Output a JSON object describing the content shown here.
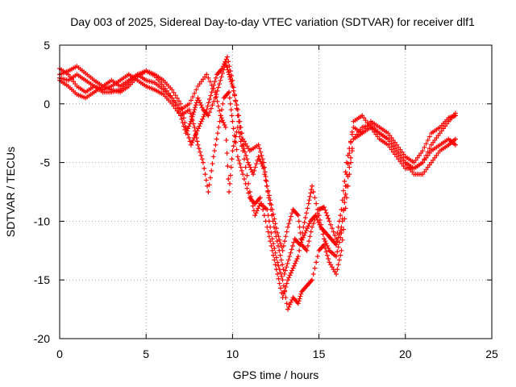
{
  "chart_data": {
    "type": "scatter",
    "title": "Day 003 of 2025, Sidereal Day-to-day VTEC variation (SDTVAR) for receiver dlf1",
    "xlabel": "GPS time / hours",
    "ylabel": "SDTVAR / TECUs",
    "xlim": [
      0,
      25
    ],
    "ylim": [
      -20,
      5
    ],
    "xticks": [
      0,
      5,
      10,
      15,
      20,
      25
    ],
    "yticks": [
      -20,
      -15,
      -10,
      -5,
      0,
      5
    ],
    "grid": true,
    "marker": "+",
    "color": "#ff0000",
    "series": [
      {
        "points": [
          [
            0,
            2.5
          ],
          [
            0.5,
            2.8
          ],
          [
            1,
            3.2
          ],
          [
            1.5,
            2.6
          ],
          [
            2,
            2.0
          ],
          [
            2.5,
            1.5
          ],
          [
            3,
            1.2
          ],
          [
            3.5,
            1.0
          ],
          [
            4,
            1.5
          ],
          [
            4.5,
            2.3
          ],
          [
            5,
            2.8
          ],
          [
            5.5,
            2.4
          ],
          [
            6,
            1.5
          ],
          [
            6.5,
            0.5
          ],
          [
            7,
            -1.0
          ],
          [
            7.3,
            -2.5
          ],
          [
            7.6,
            -1.5
          ],
          [
            7.8,
            -0.5
          ],
          [
            8,
            0.5
          ],
          [
            8.3,
            -0.5
          ],
          [
            8.6,
            -1.0
          ],
          [
            9,
            0.5
          ],
          [
            9.3,
            2.0
          ],
          [
            9.6,
            3.5
          ],
          [
            9.8,
            2.5
          ],
          [
            10,
            1.5
          ],
          [
            10.3,
            -0.5
          ],
          [
            10.6,
            -3.0
          ],
          [
            11,
            -4.0
          ],
          [
            11.5,
            -3.5
          ],
          [
            11.8,
            -5.0
          ],
          [
            12,
            -7.0
          ],
          [
            12.3,
            -9.0
          ],
          [
            12.6,
            -11.0
          ],
          [
            12.9,
            -12.5
          ],
          [
            13.2,
            -10.5
          ],
          [
            13.5,
            -9.0
          ],
          [
            13.8,
            -9.5
          ],
          [
            14,
            -12.0
          ],
          [
            14.3,
            -12.5
          ],
          [
            14.6,
            -10.5
          ],
          [
            15,
            -9.0
          ],
          [
            15.3,
            -8.8
          ],
          [
            15.6,
            -10.0
          ],
          [
            16,
            -11.5
          ],
          [
            16.3,
            -9.0
          ],
          [
            16.6,
            -5.0
          ],
          [
            17,
            -2.0
          ],
          [
            17.5,
            -2.5
          ],
          [
            18,
            -2.0
          ],
          [
            18.5,
            -2.5
          ],
          [
            19,
            -3.0
          ],
          [
            19.5,
            -4.0
          ],
          [
            20,
            -5.0
          ],
          [
            20.5,
            -5.5
          ],
          [
            21,
            -5.0
          ],
          [
            21.5,
            -3.5
          ],
          [
            22,
            -2.5
          ],
          [
            22.5,
            -1.5
          ],
          [
            22.9,
            -0.8
          ]
        ]
      },
      {
        "points": [
          [
            0,
            2.0
          ],
          [
            0.5,
            1.5
          ],
          [
            1,
            0.8
          ],
          [
            1.5,
            0.5
          ],
          [
            2,
            1.0
          ],
          [
            2.5,
            1.5
          ],
          [
            3,
            2.0
          ],
          [
            3.5,
            1.5
          ],
          [
            4,
            2.0
          ],
          [
            4.5,
            2.5
          ],
          [
            5,
            2.0
          ],
          [
            5.5,
            1.8
          ],
          [
            6,
            1.2
          ],
          [
            6.5,
            0.5
          ],
          [
            7,
            -0.5
          ],
          [
            7.5,
            0
          ],
          [
            8,
            1.5
          ],
          [
            8.5,
            2.5
          ],
          [
            9,
            1.0
          ],
          [
            9.3,
            -1.0
          ],
          [
            9.6,
            -2.0
          ],
          [
            9.8,
            -7.5
          ],
          [
            10,
            -4.0
          ],
          [
            10.3,
            -2.0
          ],
          [
            10.6,
            -4.0
          ],
          [
            11,
            -7.5
          ],
          [
            11.3,
            -9.5
          ],
          [
            11.6,
            -8.5
          ],
          [
            12,
            -9.0
          ],
          [
            12.3,
            -11.5
          ],
          [
            12.6,
            -13.5
          ],
          [
            12.9,
            -15.0
          ],
          [
            13.2,
            -17.5
          ],
          [
            13.5,
            -16.5
          ],
          [
            13.8,
            -17.0
          ],
          [
            14,
            -16.0
          ],
          [
            14.3,
            -15.5
          ],
          [
            14.6,
            -15.0
          ],
          [
            15,
            -12.5
          ],
          [
            15.3,
            -12.0
          ],
          [
            15.6,
            -13.5
          ],
          [
            16,
            -14.5
          ],
          [
            16.3,
            -12.5
          ],
          [
            16.6,
            -8.0
          ],
          [
            17,
            -3.0
          ],
          [
            17.5,
            -2.0
          ],
          [
            18,
            -1.8
          ],
          [
            18.5,
            -2.5
          ],
          [
            19,
            -3.0
          ],
          [
            19.5,
            -4.0
          ],
          [
            20,
            -5.0
          ],
          [
            20.5,
            -6.0
          ],
          [
            21,
            -6.0
          ],
          [
            21.5,
            -5.0
          ],
          [
            22,
            -4.0
          ],
          [
            22.5,
            -3.5
          ],
          [
            22.9,
            -3.0
          ]
        ]
      },
      {
        "points": [
          [
            0,
            3.0
          ],
          [
            0.5,
            2.5
          ],
          [
            1,
            1.5
          ],
          [
            1.5,
            1.0
          ],
          [
            2,
            1.5
          ],
          [
            2.5,
            1.2
          ],
          [
            3,
            1.5
          ],
          [
            3.5,
            2.0
          ],
          [
            4,
            2.5
          ],
          [
            4.5,
            2.0
          ],
          [
            5,
            1.5
          ],
          [
            5.5,
            1.2
          ],
          [
            6,
            0.8
          ],
          [
            6.5,
            0
          ],
          [
            7,
            -1.0
          ],
          [
            7.5,
            -0.5
          ],
          [
            7.8,
            -2.0
          ],
          [
            8,
            -3.5
          ],
          [
            8.3,
            -5.0
          ],
          [
            8.6,
            -7.5
          ],
          [
            8.9,
            -4.5
          ],
          [
            9.2,
            -2.0
          ],
          [
            9.5,
            0.5
          ],
          [
            9.8,
            1.0
          ],
          [
            10,
            -1.5
          ],
          [
            10.3,
            -4.5
          ],
          [
            10.6,
            -6.0
          ],
          [
            11,
            -8.0
          ],
          [
            11.3,
            -8.5
          ],
          [
            11.6,
            -8.0
          ],
          [
            12,
            -10.5
          ],
          [
            12.3,
            -12.5
          ],
          [
            12.6,
            -14.5
          ],
          [
            12.9,
            -16.5
          ],
          [
            13.2,
            -15.0
          ],
          [
            13.5,
            -14.0
          ],
          [
            13.8,
            -13.0
          ],
          [
            14.1,
            -10.5
          ],
          [
            14.4,
            -8.5
          ],
          [
            14.6,
            -7.0
          ],
          [
            15,
            -9.5
          ],
          [
            15.3,
            -11.5
          ],
          [
            15.6,
            -12.5
          ],
          [
            16,
            -13.0
          ],
          [
            16.3,
            -11.0
          ],
          [
            16.6,
            -6.0
          ],
          [
            17,
            -1.5
          ],
          [
            17.5,
            -1.0
          ],
          [
            18,
            -2.0
          ],
          [
            18.5,
            -3.0
          ],
          [
            19,
            -3.5
          ],
          [
            19.5,
            -4.5
          ],
          [
            20,
            -5.5
          ],
          [
            20.5,
            -5.5
          ],
          [
            21,
            -5.0
          ],
          [
            21.5,
            -4.0
          ],
          [
            22,
            -3.5
          ],
          [
            22.5,
            -3.0
          ],
          [
            22.9,
            -3.5
          ]
        ]
      },
      {
        "points": [
          [
            0,
            2.2
          ],
          [
            0.5,
            2.0
          ],
          [
            1,
            2.5
          ],
          [
            1.5,
            2.0
          ],
          [
            2,
            1.5
          ],
          [
            2.5,
            1.0
          ],
          [
            3,
            1.0
          ],
          [
            3.5,
            1.2
          ],
          [
            4,
            1.8
          ],
          [
            4.5,
            2.5
          ],
          [
            5,
            2.8
          ],
          [
            5.5,
            2.5
          ],
          [
            6,
            2.0
          ],
          [
            6.5,
            1.2
          ],
          [
            7,
            0
          ],
          [
            7.3,
            -2.0
          ],
          [
            7.6,
            -3.5
          ],
          [
            7.9,
            -2.5
          ],
          [
            8.2,
            -1.5
          ],
          [
            8.5,
            -0.5
          ],
          [
            8.8,
            1.0
          ],
          [
            9.1,
            2.5
          ],
          [
            9.4,
            3.0
          ],
          [
            9.7,
            4.0
          ],
          [
            10,
            2.0
          ],
          [
            10.3,
            -1.0
          ],
          [
            10.6,
            -3.5
          ],
          [
            10.9,
            -5.0
          ],
          [
            11.2,
            -6.0
          ],
          [
            11.5,
            -4.5
          ],
          [
            11.8,
            -5.5
          ],
          [
            12.1,
            -8.0
          ],
          [
            12.4,
            -10.5
          ],
          [
            12.7,
            -12.5
          ],
          [
            13,
            -14.5
          ],
          [
            13.3,
            -13.0
          ],
          [
            13.6,
            -11.5
          ],
          [
            13.9,
            -12.0
          ],
          [
            14.2,
            -11.0
          ],
          [
            14.5,
            -10.0
          ],
          [
            14.8,
            -9.5
          ],
          [
            15.1,
            -10.5
          ],
          [
            15.4,
            -11.0
          ],
          [
            15.7,
            -11.5
          ],
          [
            16,
            -12.0
          ],
          [
            16.3,
            -10.5
          ],
          [
            16.6,
            -7.0
          ],
          [
            17,
            -3.0
          ],
          [
            17.5,
            -2.5
          ],
          [
            18,
            -1.5
          ],
          [
            18.5,
            -2.0
          ],
          [
            19,
            -2.5
          ],
          [
            19.5,
            -3.5
          ],
          [
            20,
            -4.5
          ],
          [
            20.5,
            -5.0
          ],
          [
            21,
            -4.0
          ],
          [
            21.5,
            -2.5
          ],
          [
            22,
            -2.0
          ],
          [
            22.5,
            -1.2
          ],
          [
            22.9,
            -1.0
          ]
        ]
      }
    ]
  }
}
